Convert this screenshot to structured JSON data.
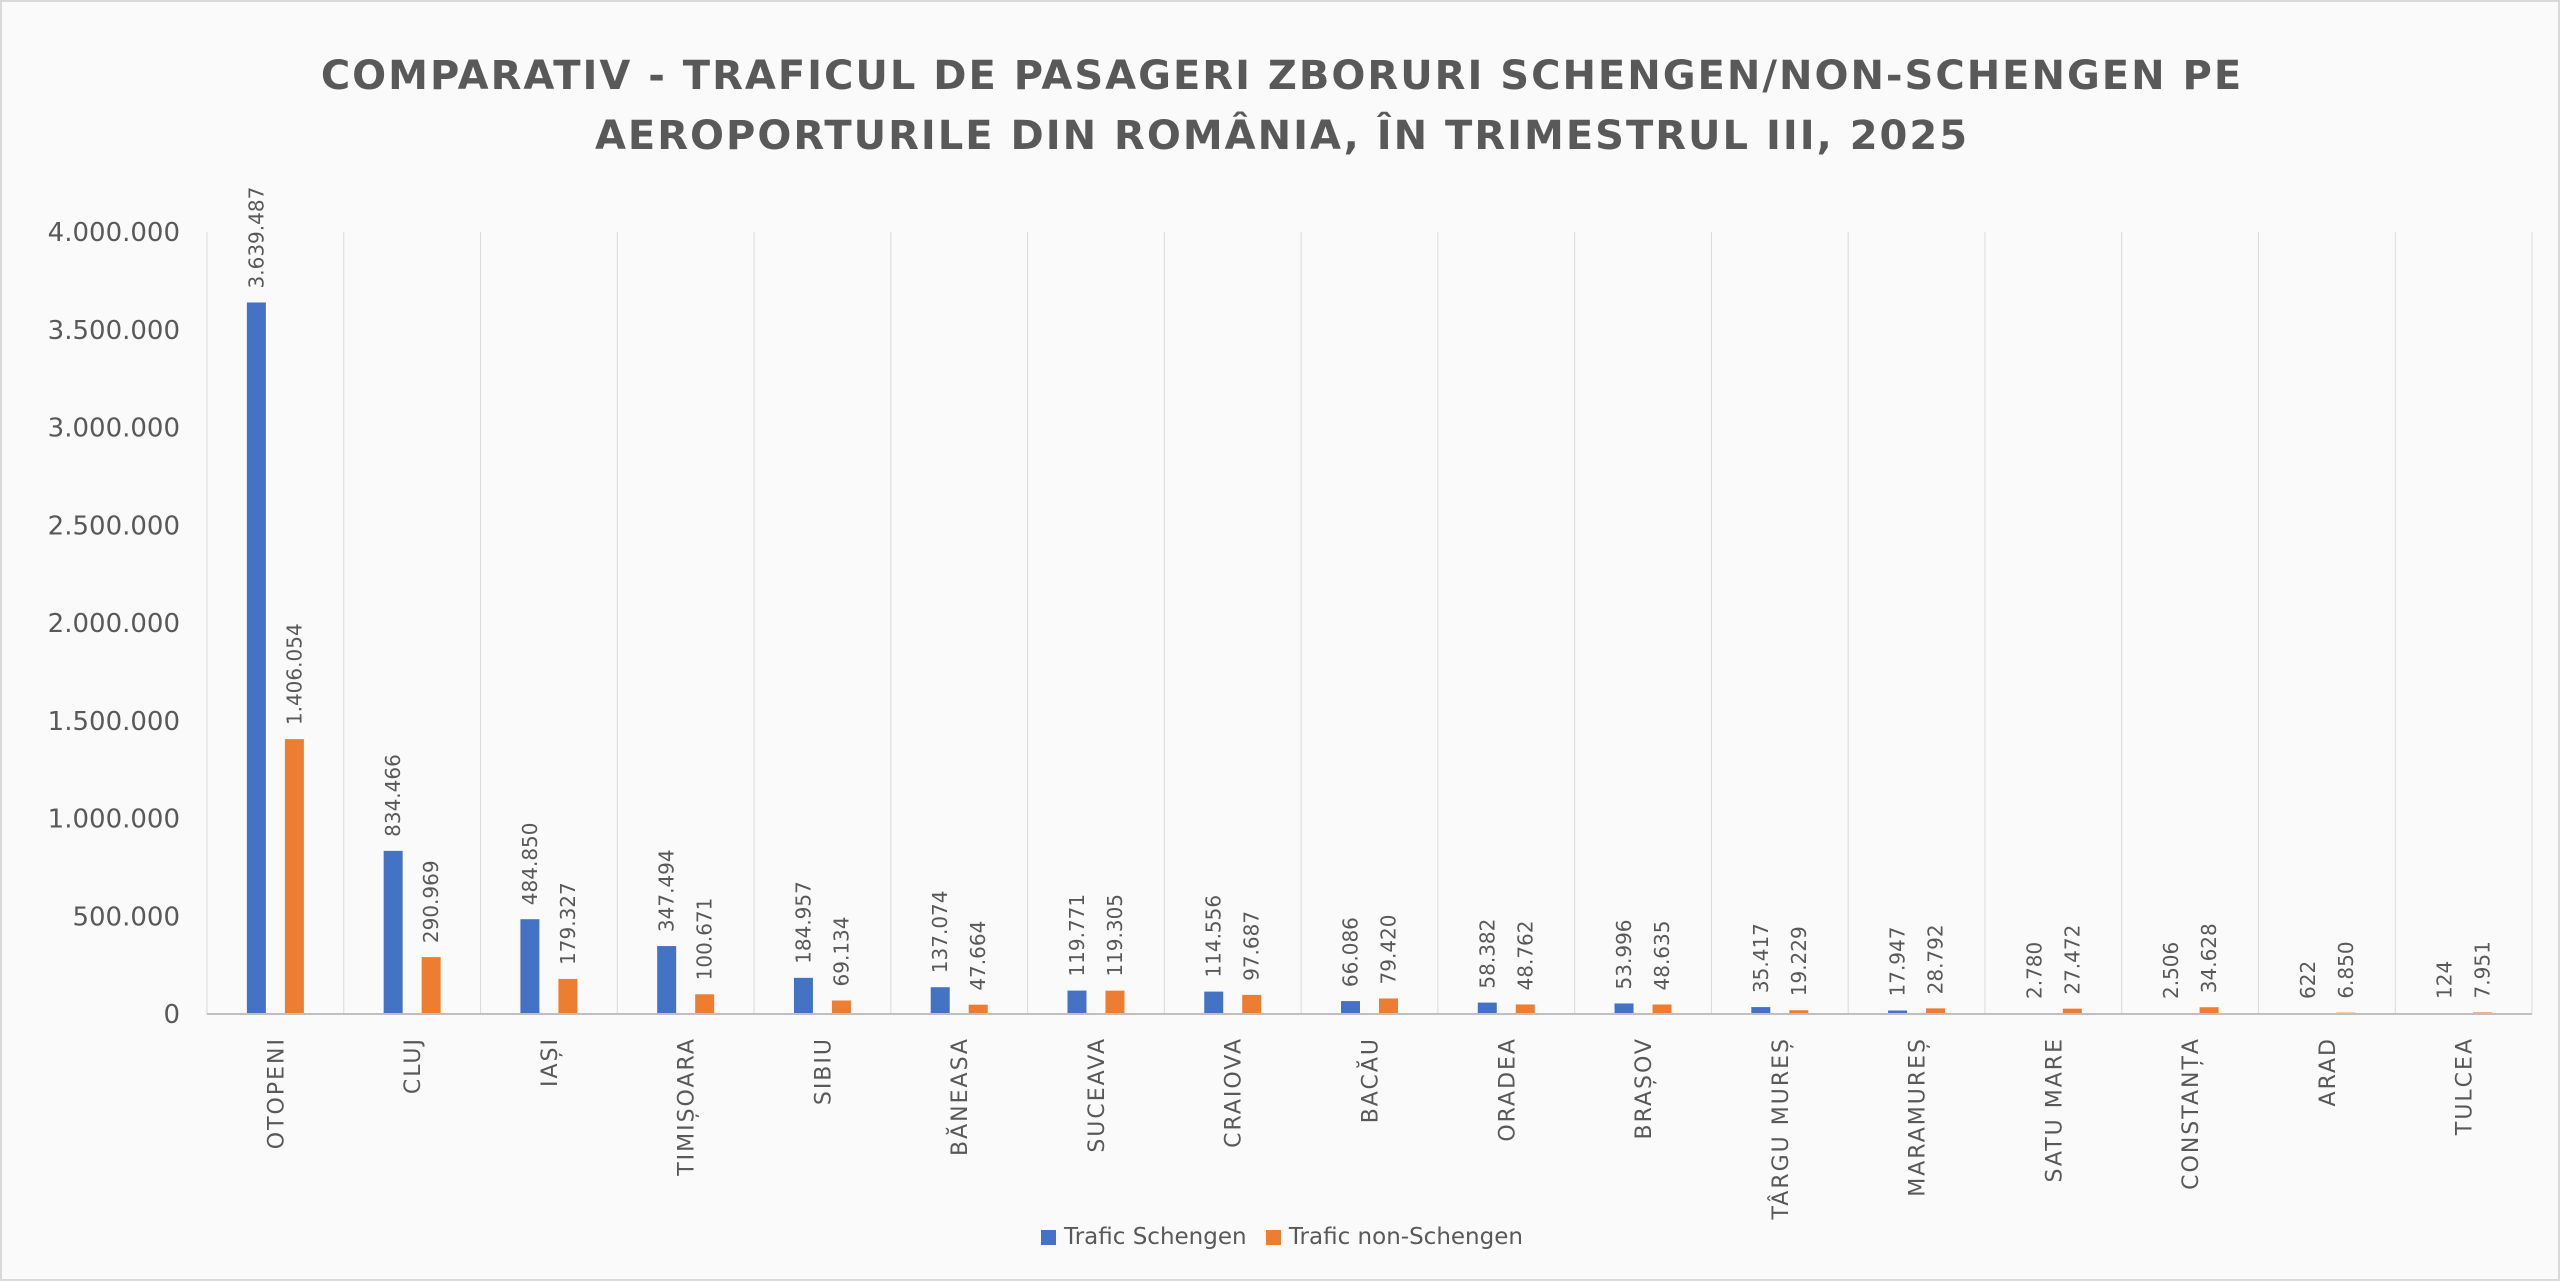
{
  "chart_data": {
    "type": "bar",
    "title_lines": [
      "COMPARATIV - TRAFICUL DE PASAGERI ZBORURI SCHENGEN/NON-SCHENGEN PE",
      "AEROPORTURILE DIN ROMÂNIA, ÎN TRIMESTRUL III, 2025"
    ],
    "categories": [
      "OTOPENI",
      "CLUJ",
      "IAȘI",
      "TIMIȘOARA",
      "SIBIU",
      "BĂNEASA",
      "SUCEAVA",
      "CRAIOVA",
      "BACĂU",
      "ORADEA",
      "BRAȘOV",
      "TÂRGU MUREȘ",
      "MARAMUREȘ",
      "SATU MARE",
      "CONSTANȚA",
      "ARAD",
      "TULCEA"
    ],
    "series": [
      {
        "name": "Trafic Schengen",
        "color": "#4472c4",
        "values": [
          3639487,
          834466,
          484850,
          347494,
          184957,
          137074,
          119771,
          114556,
          66086,
          58382,
          53996,
          35417,
          17947,
          2780,
          2506,
          622,
          124
        ],
        "labels": [
          "3.639.487",
          "834.466",
          "484.850",
          "347.494",
          "184.957",
          "137.074",
          "119.771",
          "114.556",
          "66.086",
          "58.382",
          "53.996",
          "35.417",
          "17.947",
          "2.780",
          "2.506",
          "622",
          "124"
        ]
      },
      {
        "name": "Trafic non-Schengen",
        "color": "#ed7d31",
        "values": [
          1406054,
          290969,
          179327,
          100671,
          69134,
          47664,
          119305,
          97687,
          79420,
          48762,
          48635,
          19229,
          28792,
          27472,
          34628,
          6850,
          7951
        ],
        "labels": [
          "1.406.054",
          "290.969",
          "179.327",
          "100.671",
          "69.134",
          "47.664",
          "119.305",
          "97.687",
          "79.420",
          "48.762",
          "48.635",
          "19.229",
          "28.792",
          "27.472",
          "34.628",
          "6.850",
          "7.951"
        ]
      }
    ],
    "ylim": [
      0,
      4000000
    ],
    "yticks": [
      0,
      500000,
      1000000,
      1500000,
      2000000,
      2500000,
      3000000,
      3500000,
      4000000
    ],
    "ytick_labels": [
      "0",
      "500.000",
      "1.000.000",
      "1.500.000",
      "2.000.000",
      "2.500.000",
      "3.000.000",
      "3.500.000",
      "4.000.000"
    ],
    "xlabel": "",
    "ylabel": "",
    "grid": "vertical category separators",
    "legend_position": "bottom-center"
  }
}
